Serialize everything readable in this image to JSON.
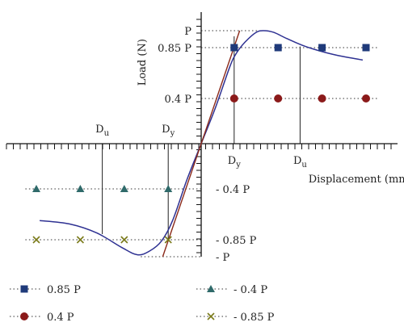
{
  "chart_data": {
    "type": "line",
    "xlabel": "Displacement (mm)",
    "ylabel": "Load (N)",
    "xlim": [
      -1.85,
      1.85
    ],
    "ylim": [
      -1.05,
      1.1
    ],
    "grid": false,
    "y_tick_labels": {
      "pos_p": "P",
      "pos_085": "0.85 P",
      "pos_04": "0.4 P",
      "neg_04": "- 0.4 P",
      "neg_085": "- 0.85 P",
      "neg_p": "- P"
    },
    "x_markers": {
      "dy_pos": {
        "main": "D",
        "sub": "y"
      },
      "du_pos": {
        "main": "D",
        "sub": "u"
      },
      "dy_neg": {
        "main": "D",
        "sub": "y"
      },
      "du_neg": {
        "main": "D",
        "sub": "u"
      }
    },
    "reference_values": {
      "P": 1.0,
      "p085": 0.85,
      "p04": 0.4,
      "Dy": 0.3,
      "Du": 0.9,
      "Dy_neg": -0.3,
      "Du_neg": -0.9
    },
    "series": [
      {
        "name": "load-displacement curve",
        "color": "#2e3192",
        "points": [
          [
            -1.47,
            -0.68
          ],
          [
            -1.2,
            -0.71
          ],
          [
            -0.95,
            -0.79
          ],
          [
            -0.72,
            -0.92
          ],
          [
            -0.58,
            -0.983
          ],
          [
            -0.47,
            -0.95
          ],
          [
            -0.36,
            -0.86
          ],
          [
            -0.26,
            -0.68
          ],
          [
            -0.13,
            -0.32
          ],
          [
            0,
            0
          ],
          [
            0.13,
            0.32
          ],
          [
            0.26,
            0.68
          ],
          [
            0.32,
            0.8
          ],
          [
            0.4,
            0.9
          ],
          [
            0.5,
            0.985
          ],
          [
            0.57,
            1.0
          ],
          [
            0.66,
            0.985
          ],
          [
            0.78,
            0.93
          ],
          [
            0.95,
            0.86
          ],
          [
            1.2,
            0.79
          ],
          [
            1.47,
            0.74
          ]
        ]
      },
      {
        "name": "initial stiffness line",
        "color": "#8b2a1a",
        "points": [
          [
            -0.35,
            -1.0
          ],
          [
            0.35,
            1.0
          ]
        ]
      },
      {
        "name": "0.85 P",
        "marker": "square",
        "color": "#1f3a7a",
        "y": 0.85,
        "x": [
          0.3,
          0.7,
          1.1,
          1.5
        ]
      },
      {
        "name": "0.4 P",
        "marker": "circle",
        "color": "#8b1a1a",
        "y": 0.4,
        "x": [
          0.3,
          0.7,
          1.1,
          1.5
        ]
      },
      {
        "name": "- 0.4 P",
        "marker": "triangle",
        "color": "#2f6a6a",
        "y": -0.4,
        "x": [
          -1.5,
          -1.1,
          -0.7,
          -0.3
        ]
      },
      {
        "name": "- 0.85 P",
        "marker": "cross",
        "color": "#7a7a1a",
        "y": -0.85,
        "x": [
          -1.5,
          -1.1,
          -0.7,
          -0.3
        ]
      }
    ],
    "legend": [
      {
        "label": "0.85 P",
        "marker": "square",
        "color": "#1f3a7a"
      },
      {
        "label": "- 0.4 P",
        "marker": "triangle",
        "color": "#2f6a6a"
      },
      {
        "label": "0.4 P",
        "marker": "circle",
        "color": "#8b1a1a"
      },
      {
        "label": "- 0.85 P",
        "marker": "cross",
        "color": "#7a7a1a"
      }
    ],
    "legend_position": "bottom"
  }
}
